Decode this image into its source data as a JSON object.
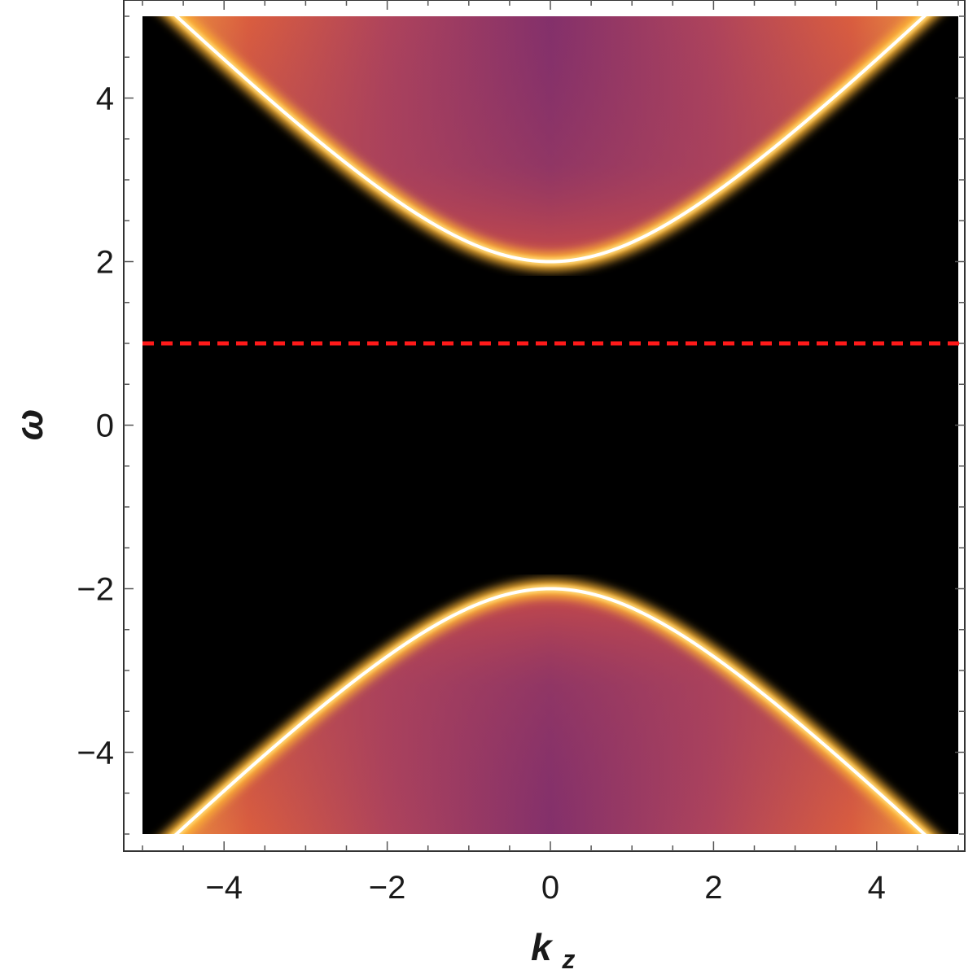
{
  "chart_data": {
    "type": "heatmap",
    "title": "",
    "xlabel": {
      "base": "k",
      "sub": "z"
    },
    "ylabel": "ω",
    "xlim": [
      -5,
      5
    ],
    "ylim": [
      -5,
      5
    ],
    "grid": false,
    "x_ticks": [
      {
        "value": -4,
        "label": "−4"
      },
      {
        "value": -2,
        "label": "−2"
      },
      {
        "value": 0,
        "label": "0"
      },
      {
        "value": 2,
        "label": "2"
      },
      {
        "value": 4,
        "label": "4"
      }
    ],
    "y_ticks": [
      {
        "value": 4,
        "label": "4"
      },
      {
        "value": 2,
        "label": "2"
      },
      {
        "value": 0,
        "label": "0"
      },
      {
        "value": -2,
        "label": "−2"
      },
      {
        "value": -4,
        "label": "−4"
      }
    ],
    "bands": [
      {
        "name": "",
        "formula": "ω = +sqrt(kz^2 + 4)",
        "gap_edge": 2,
        "fill": "toward +ω"
      },
      {
        "name": "",
        "formula": "ω = −sqrt(kz^2 + 4)",
        "gap_edge": -2,
        "fill": "toward −ω"
      }
    ],
    "reference_line": {
      "orientation": "horizontal",
      "y": 1,
      "style": "dashed",
      "color": "#ff1a1a"
    },
    "colormap": [
      "#000000",
      "#ffffff",
      "#ffc24a",
      "#f58b2b",
      "#cc4a4f",
      "#8a2f6a"
    ]
  }
}
